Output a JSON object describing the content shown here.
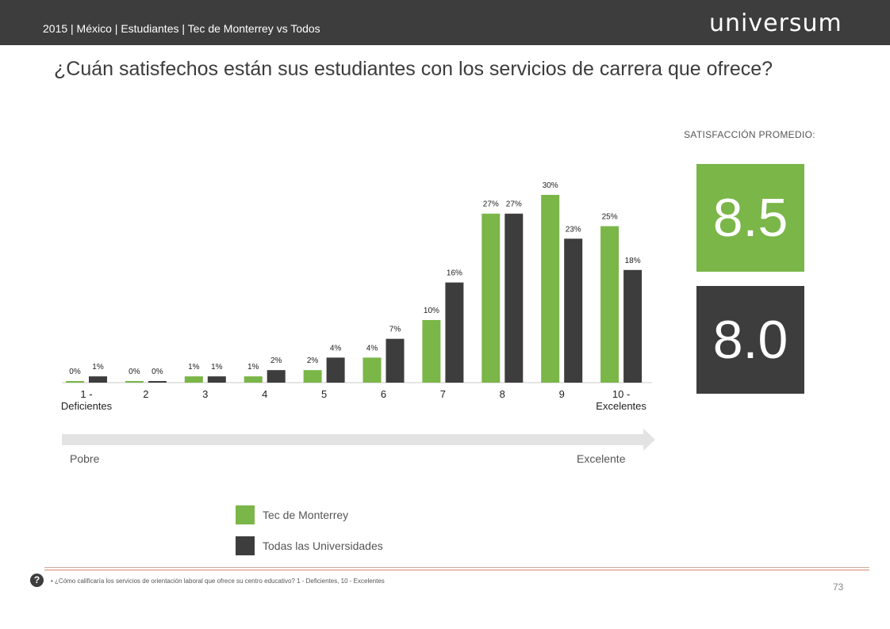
{
  "header": {
    "breadcrumb": "2015 | México | Estudiantes | Tec de Monterrey vs Todos",
    "brand": "universum"
  },
  "title": "¿Cuán satisfechos están sus estudiantes con los servicios de carrera que ofrece?",
  "chart_data": {
    "type": "bar",
    "categories": [
      "1 -\nDeficientes",
      "2",
      "3",
      "4",
      "5",
      "6",
      "7",
      "8",
      "9",
      "10 -\nExcelentes"
    ],
    "series": [
      {
        "name": "Tec de Monterrey",
        "color": "#7ab648",
        "values": [
          0,
          0,
          1,
          1,
          2,
          4,
          10,
          27,
          30,
          25
        ],
        "labels": [
          "0%",
          "0%",
          "1%",
          "1%",
          "2%",
          "4%",
          "10%",
          "27%",
          "30%",
          "25%"
        ]
      },
      {
        "name": "Todas las Universidades",
        "color": "#3d3d3d",
        "values": [
          1,
          0,
          1,
          2,
          4,
          7,
          16,
          27,
          23,
          18
        ],
        "labels": [
          "1%",
          "0%",
          "1%",
          "2%",
          "4%",
          "7%",
          "16%",
          "27%",
          "23%",
          "18%"
        ]
      }
    ],
    "ylim": [
      0,
      30
    ],
    "grid": false,
    "legend": "bottom"
  },
  "satisfaction": {
    "label": "SATISFACCIÓN PROMEDIO:",
    "tec_score": "8.5",
    "all_score": "8.0",
    "tec_color": "#7ab648",
    "all_color": "#3d3d3d"
  },
  "scale": {
    "low": "Pobre",
    "high": "Excelente"
  },
  "legend": {
    "tec_label": "Tec de Monterrey",
    "all_label": "Todas las Universidades"
  },
  "footer": {
    "help_icon": "question-mark-icon",
    "help_glyph": "?",
    "note": "¿Cómo calificaría los servicios de orientación laboral que ofrece su centro educativo? 1 - Deficientes, 10 - Excelentes",
    "page_number": "73"
  }
}
